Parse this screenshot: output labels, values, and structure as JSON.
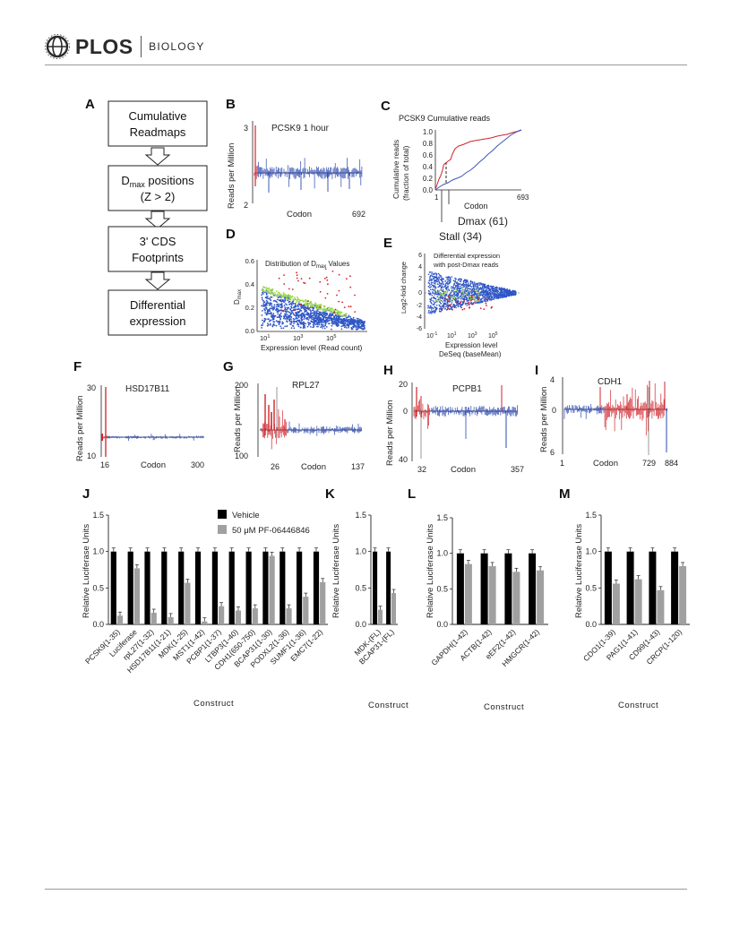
{
  "header": {
    "journal": "PLOS",
    "section": "BIOLOGY"
  },
  "panel_letters": [
    "A",
    "B",
    "C",
    "D",
    "E",
    "F",
    "G",
    "H",
    "I",
    "J",
    "K",
    "L",
    "M"
  ],
  "flowchart": {
    "box1": [
      "Cumulative",
      "Readmaps"
    ],
    "box2_main": "D",
    "box2_sub": "max",
    "box2_tail": " positions",
    "box2_line2": "(Z > 2)",
    "box3": [
      "3' CDS",
      "Footprints"
    ],
    "box4": [
      "Differential",
      "expression"
    ]
  },
  "panelB": {
    "title": "PCSK9 1 hour",
    "ylabel": "Reads per Million",
    "xlabel": "Codon",
    "ytop": "3",
    "ybottom": "2",
    "xend": "692"
  },
  "panelC": {
    "title": "PCSK9 Cumulative reads",
    "ylabel1": "Cumulative reads",
    "ylabel2": "(fraction of total)",
    "xlabel": "Codon",
    "yticks": [
      "1.0",
      "0.8",
      "0.6",
      "0.4",
      "0.2",
      "0.0"
    ],
    "xstart": "1",
    "xend": "693",
    "dmax": "Dmax (61)",
    "stall": "Stall (34)"
  },
  "panelD": {
    "title_pre": "Distribution of D",
    "title_sub": "max",
    "title_post": " Values",
    "ylabel_main": "D",
    "ylabel_sub": "max",
    "xlabel": "Expression level (Read count)",
    "yticks": [
      "0.6",
      "0.4",
      "0.2",
      "0.0"
    ],
    "xticks": [
      "10",
      "10",
      "10"
    ],
    "xtick_exps": [
      "1",
      "3",
      "5"
    ]
  },
  "panelE": {
    "title1": "Differential expression",
    "title2": "with post-Dmax reads",
    "ylabel": "Log2-fold change",
    "xlabel1": "Expression level",
    "xlabel2": "DeSeq (baseMean)",
    "yticks": [
      "6",
      "4",
      "2",
      "0",
      "-2",
      "-4",
      "-6"
    ],
    "xticks": [
      "10",
      "10",
      "10",
      "10"
    ],
    "xtick_exps": [
      "-1",
      "1",
      "3",
      "5"
    ]
  },
  "panelF": {
    "title": "HSD17B11",
    "ylabel": "Reads per Million",
    "xlabel": "Codon",
    "ytop": "30",
    "ybottom": "10",
    "xstart": "16",
    "xend": "300"
  },
  "panelG": {
    "title": "RPL27",
    "ylabel": "Reads per Million",
    "xlabel": "Codon",
    "ytop": "200",
    "ybottom": "100",
    "xmark": "26",
    "xend": "137"
  },
  "panelH": {
    "title": "PCPB1",
    "ylabel": "Reads per Million",
    "xlabel": "Codon",
    "ytop": "20",
    "ymid": "0",
    "ybottom": "40",
    "xmark": "32",
    "xend": "357"
  },
  "panelI": {
    "title": "CDH1",
    "ylabel": "Reads per Million",
    "xlabel": "Codon",
    "ytop": "4",
    "ymid": "0",
    "ybottom": "6",
    "xstart": "1",
    "xmark": "729",
    "xend": "884"
  },
  "chart_data": [
    {
      "panel": "J",
      "type": "bar",
      "ylabel": "Relative Luciferase Units",
      "xlabel": "Construct",
      "ylim": [
        0,
        1.5
      ],
      "yticks": [
        "0.0",
        "0.5",
        "1.0",
        "1.5"
      ],
      "categories": [
        "PCSK9(1-35)",
        "Luciferase",
        "rpL27(1-32)",
        "HSD17B11(1-21)",
        "MDK(1-25)",
        "MST1(1-42)",
        "PCBP1(1-37)",
        "LTBP3(1-40)",
        "CDH1(650-750)",
        "BCAP31(1-30)",
        "PODXL2(1-36)",
        "SUMF1(1-36)",
        "EMC7(1-22)"
      ],
      "series": [
        {
          "name": "Vehicle",
          "color": "#000000",
          "values": [
            1.0,
            1.0,
            1.0,
            1.0,
            1.0,
            1.0,
            1.0,
            1.0,
            1.0,
            1.0,
            1.0,
            1.0,
            1.0
          ]
        },
        {
          "name": "50 μM PF-06446846",
          "color": "#a0a0a0",
          "values": [
            0.12,
            0.77,
            0.16,
            0.1,
            0.57,
            0.04,
            0.25,
            0.19,
            0.22,
            0.94,
            0.22,
            0.38,
            0.58
          ]
        }
      ]
    },
    {
      "panel": "K",
      "type": "bar",
      "ylabel": "Relative Luciferase Units",
      "xlabel": "Construct",
      "ylim": [
        0,
        1.5
      ],
      "yticks": [
        "0.0",
        "0.5",
        "1.0",
        "1.5"
      ],
      "categories": [
        "MDK-(FL)",
        "BCAP31-(FL)"
      ],
      "series": [
        {
          "name": "Vehicle",
          "color": "#000000",
          "values": [
            1.0,
            1.0
          ]
        },
        {
          "name": "50 μM PF-06446846",
          "color": "#a0a0a0",
          "values": [
            0.2,
            0.43
          ]
        }
      ]
    },
    {
      "panel": "L",
      "type": "bar",
      "ylabel": "Relative Luciferase Units",
      "xlabel": "Construct",
      "ylim": [
        0,
        1.5
      ],
      "yticks": [
        "0.0",
        "0.5",
        "1.0",
        "1.5"
      ],
      "categories": [
        "GAPDH(1-42)",
        "ACTB(1-42)",
        "eEF2(1-42)",
        "HMGCR(1-42)"
      ],
      "series": [
        {
          "name": "Vehicle",
          "color": "#000000",
          "values": [
            1.0,
            1.0,
            1.0,
            1.0
          ]
        },
        {
          "name": "50 μM PF-06446846",
          "color": "#a0a0a0",
          "values": [
            0.85,
            0.82,
            0.74,
            0.76
          ]
        }
      ]
    },
    {
      "panel": "M",
      "type": "bar",
      "ylabel": "Relative Luciferase Units",
      "xlabel": "Construct",
      "ylim": [
        0,
        1.5
      ],
      "yticks": [
        "0.0",
        "0.5",
        "1.0",
        "1.5"
      ],
      "categories": [
        "CDO1(1-39)",
        "PAG1(1-41)",
        "CD99(1-43)",
        "CRCP(1-120)"
      ],
      "series": [
        {
          "name": "Vehicle",
          "color": "#000000",
          "values": [
            1.0,
            1.0,
            1.0,
            1.0
          ]
        },
        {
          "name": "50 μM PF-06446846",
          "color": "#a0a0a0",
          "values": [
            0.56,
            0.62,
            0.47,
            0.8
          ]
        }
      ]
    }
  ],
  "legend": {
    "vehicle": "Vehicle",
    "drug": "50 μM PF-06446846"
  },
  "colors": {
    "red": "#d0242b",
    "blue": "#1f3fa8",
    "green": "#9ed84a",
    "grey": "#a0a0a0",
    "black": "#000000"
  }
}
